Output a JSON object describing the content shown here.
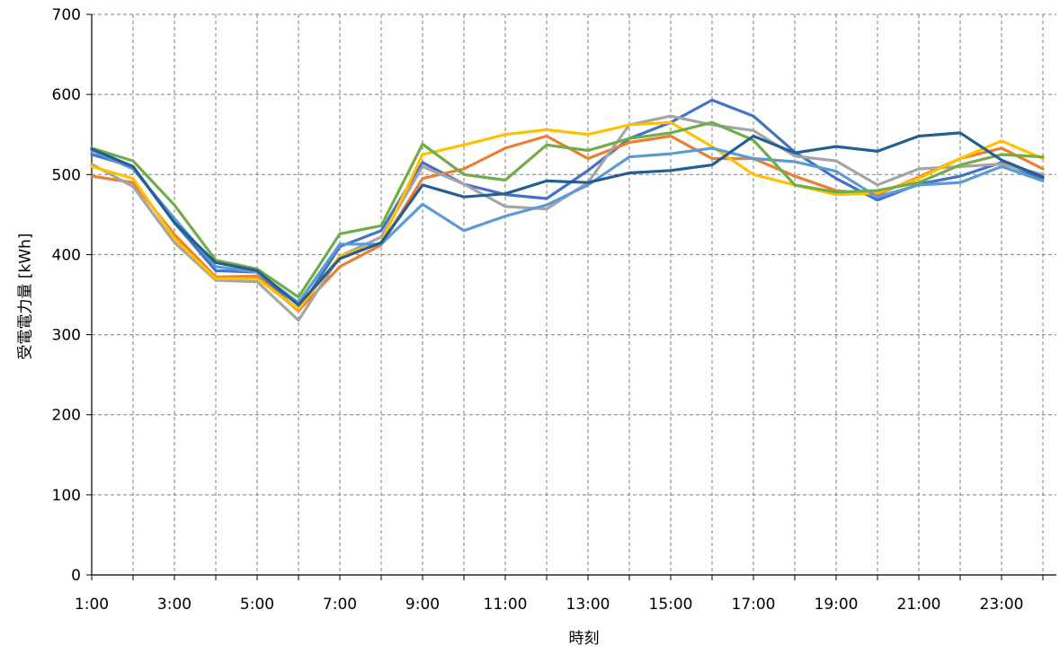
{
  "chart_data": {
    "type": "line",
    "title": "",
    "xlabel": "時刻",
    "ylabel": "受電電力量 [kWh]",
    "ylim": [
      0,
      700
    ],
    "yticks": [
      0,
      100,
      200,
      300,
      400,
      500,
      600,
      700
    ],
    "grid": true,
    "legend": "none",
    "categories": [
      "1:00",
      "2:00",
      "3:00",
      "4:00",
      "5:00",
      "6:00",
      "7:00",
      "8:00",
      "9:00",
      "10:00",
      "11:00",
      "12:00",
      "13:00",
      "14:00",
      "15:00",
      "16:00",
      "17:00",
      "18:00",
      "19:00",
      "20:00",
      "21:00",
      "22:00",
      "23:00",
      "24:00"
    ],
    "tick_labels": [
      "1:00",
      "",
      "3:00",
      "",
      "5:00",
      "",
      "7:00",
      "",
      "9:00",
      "",
      "11:00",
      "",
      "13:00",
      "",
      "15:00",
      "",
      "17:00",
      "",
      "19:00",
      "",
      "21:00",
      "",
      "23:00",
      ""
    ],
    "series": [
      {
        "color": "#4472C4",
        "values": [
          525,
          510,
          440,
          380,
          378,
          330,
          410,
          430,
          515,
          488,
          475,
          470,
          505,
          545,
          565,
          593,
          573,
          528,
          495,
          468,
          488,
          498,
          515,
          495
        ]
      },
      {
        "color": "#ED7D31",
        "values": [
          498,
          490,
          425,
          372,
          373,
          330,
          385,
          412,
          495,
          507,
          533,
          548,
          520,
          540,
          548,
          520,
          520,
          498,
          480,
          475,
          497,
          520,
          533,
          507
        ]
      },
      {
        "color": "#A5A5A5",
        "values": [
          513,
          485,
          415,
          368,
          366,
          318,
          398,
          422,
          510,
          488,
          460,
          457,
          490,
          562,
          573,
          562,
          555,
          523,
          517,
          487,
          507,
          510,
          513,
          500
        ]
      },
      {
        "color": "#FFC000",
        "values": [
          510,
          495,
          420,
          370,
          370,
          332,
          398,
          415,
          525,
          537,
          550,
          556,
          550,
          562,
          565,
          535,
          500,
          487,
          475,
          477,
          495,
          520,
          542,
          520
        ]
      },
      {
        "color": "#5B9BD5",
        "values": [
          530,
          507,
          445,
          385,
          378,
          340,
          413,
          413,
          463,
          430,
          448,
          462,
          487,
          522,
          526,
          533,
          520,
          516,
          504,
          472,
          487,
          490,
          510,
          492
        ]
      },
      {
        "color": "#70AD47",
        "values": [
          533,
          517,
          462,
          393,
          382,
          347,
          426,
          436,
          538,
          500,
          493,
          537,
          530,
          545,
          552,
          565,
          543,
          487,
          478,
          480,
          490,
          512,
          525,
          522
        ]
      },
      {
        "color": "#255E91",
        "values": [
          532,
          510,
          440,
          390,
          380,
          337,
          395,
          415,
          487,
          472,
          476,
          492,
          490,
          502,
          505,
          512,
          548,
          527,
          535,
          529,
          548,
          552,
          518,
          497
        ]
      }
    ]
  }
}
